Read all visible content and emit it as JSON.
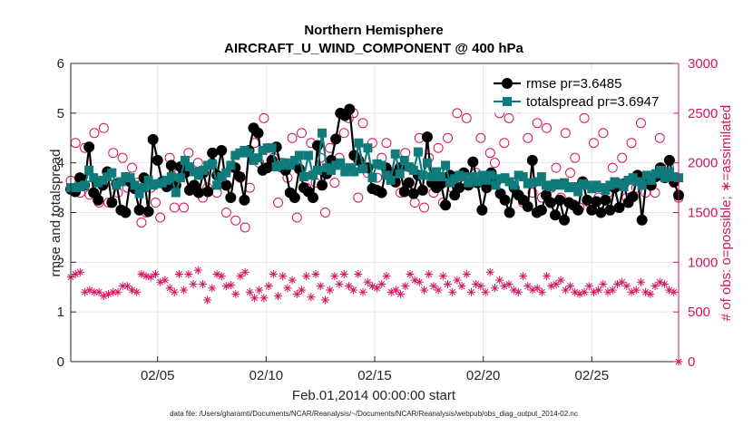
{
  "chart_data": {
    "type": "line",
    "title": "Northern Hemisphere",
    "subtitle": "AIRCRAFT_U_WIND_COMPONENT @ 400 hPa",
    "xlabel": "Feb.01,2014 00:00:00 start",
    "ylabel": "rmse and totalspread",
    "y2label": "# of obs: o=possible; ∗=assimilated",
    "footnote": "data file: /Users/gharamti/Documents/NCAR/Reanalysis/~/Documents/NCAR/Reanalysis/webpub/obs_diag_output_2014-02.nc",
    "xlim": [
      1,
      29
    ],
    "ylim": [
      0,
      6
    ],
    "y2lim": [
      0,
      3000
    ],
    "x_ticks": [
      5,
      10,
      15,
      20,
      25
    ],
    "x_tick_labels": [
      "02/05",
      "02/10",
      "02/15",
      "02/20",
      "02/25"
    ],
    "y_ticks": [
      0,
      1,
      2,
      3,
      4,
      5,
      6
    ],
    "y2_ticks": [
      0,
      500,
      1000,
      1500,
      2000,
      2500,
      3000
    ],
    "grid": true,
    "legend_position": "top-right",
    "colors": {
      "rmse": "#000000",
      "totalspread": "#0f7b7b",
      "obs": "#d6135e",
      "grid": "#e6e6e6",
      "axis": "#262626"
    },
    "series": [
      {
        "name": "rmse pr=3.6485",
        "marker": "circle",
        "values": [
          3.47,
          3.42,
          3.7,
          3.55,
          4.32,
          3.4,
          3.25,
          3.55,
          3.82,
          3.2,
          3.58,
          3.05,
          3.0,
          3.62,
          3.48,
          3.05,
          3.7,
          3.02,
          4.47,
          4.05,
          3.62,
          3.52,
          3.95,
          3.55,
          3.92,
          3.8,
          3.45,
          3.55,
          3.4,
          3.8,
          3.42,
          4.2,
          3.75,
          4.25,
          3.55,
          3.3,
          3.9,
          3.72,
          3.25,
          4.25,
          4.7,
          4.6,
          3.85,
          3.9,
          4.05,
          4.32,
          3.92,
          3.85,
          3.4,
          3.3,
          3.88,
          3.5,
          3.42,
          3.3,
          4.35,
          3.55,
          3.78,
          4.05,
          4.48,
          5.0,
          4.95,
          5.08,
          4.15,
          4.05,
          3.9,
          3.9,
          3.48,
          3.45,
          3.4,
          3.9,
          3.8,
          3.62,
          3.9,
          3.42,
          3.6,
          3.38,
          3.75,
          3.45,
          4.52,
          3.6,
          3.5,
          3.58,
          3.15,
          3.75,
          3.35,
          3.5,
          3.8,
          3.55,
          4.02,
          3.6,
          3.05,
          3.5,
          3.8,
          3.62,
          3.38,
          3.25,
          3.0,
          3.5,
          3.35,
          3.25,
          3.12,
          4.05,
          3.0,
          3.05,
          3.35,
          3.2,
          2.95,
          3.25,
          2.85,
          3.2,
          3.15,
          3.05,
          3.62,
          3.25,
          3.05,
          3.22,
          3.0,
          3.25,
          3.05,
          3.5,
          3.1,
          3.58,
          3.2,
          3.32,
          3.75,
          2.85,
          3.72,
          3.55,
          3.72,
          3.9,
          3.7,
          4.05,
          3.62,
          3.35
        ]
      },
      {
        "name": "totalspread pr=3.6947",
        "marker": "square",
        "values": [
          3.5,
          3.5,
          3.52,
          3.55,
          3.85,
          3.7,
          3.6,
          3.65,
          3.72,
          3.8,
          3.55,
          3.62,
          3.72,
          3.7,
          3.55,
          3.38,
          3.5,
          3.65,
          3.55,
          3.58,
          3.6,
          3.65,
          3.72,
          3.4,
          3.7,
          4.05,
          3.92,
          3.82,
          3.75,
          3.85,
          3.95,
          3.98,
          3.55,
          3.72,
          3.8,
          3.95,
          4.15,
          4.2,
          4.25,
          4.2,
          4.05,
          4.1,
          4.25,
          4.3,
          4.3,
          3.92,
          3.95,
          4.0,
          3.95,
          4.05,
          4.15,
          3.72,
          4.15,
          3.75,
          3.85,
          4.6,
          3.9,
          3.85,
          3.95,
          4.0,
          3.82,
          3.9,
          3.82,
          4.4,
          3.88,
          4.3,
          3.7,
          3.98,
          3.95,
          3.75,
          3.65,
          4.18,
          3.78,
          4.05,
          3.92,
          3.85,
          4.22,
          3.75,
          4.0,
          3.72,
          3.82,
          3.72,
          3.95,
          3.6,
          3.68,
          3.75,
          3.72,
          3.6,
          3.72,
          3.62,
          3.75,
          3.65,
          3.75,
          3.55,
          3.68,
          3.7,
          3.62,
          3.55,
          3.75,
          3.72,
          3.58,
          3.6,
          3.62,
          3.72,
          3.55,
          3.52,
          3.58,
          3.55,
          3.6,
          3.5,
          3.52,
          3.42,
          3.58,
          3.55,
          3.48,
          3.55,
          3.5,
          3.45,
          3.55,
          3.62,
          3.58,
          3.52,
          3.65,
          3.7,
          3.62,
          3.55,
          3.75,
          3.65,
          3.78,
          3.85,
          3.7,
          3.82,
          3.72,
          3.7
        ]
      }
    ],
    "obs_count_series": [
      {
        "name": "possible",
        "marker": "o",
        "values": [
          1820,
          2200,
          1700,
          2150,
          1680,
          2300,
          1600,
          2350,
          1600,
          2100,
          1700,
          2050,
          1750,
          1950,
          1800,
          1400,
          1500,
          1750,
          1600,
          1450,
          1800,
          2050,
          1550,
          1900,
          1550,
          2100,
          1750,
          2000,
          1650,
          1750,
          2000,
          1700,
          1850,
          1500,
          1950,
          1420,
          1850,
          1350,
          1750,
          2200,
          2000,
          2450,
          2150,
          2050,
          1600,
          2000,
          1850,
          2250,
          1450,
          2300,
          1750,
          2200,
          1800,
          2050,
          1500,
          2150,
          1800,
          2050,
          2300,
          2450,
          2500,
          1650,
          2400,
          1900,
          2200,
          1850,
          2050,
          2200,
          1850,
          1800,
          1700,
          2100,
          1950,
          1600,
          2250,
          1550,
          2050,
          1700,
          2150,
          1600,
          2250,
          1750,
          2500,
          1800,
          2450,
          1800,
          1900,
          2250,
          1800,
          2100,
          2000,
          2500,
          2200,
          2450,
          1800,
          2550,
          1600,
          2250,
          1700,
          2400,
          1650,
          2350,
          1750,
          1950,
          1650,
          2300,
          1900,
          2050,
          1550,
          2450,
          1600,
          2200,
          1650,
          2300,
          1700,
          1950,
          1800,
          2050,
          1650,
          2200,
          1750,
          2400,
          1700,
          1850,
          1700,
          2250,
          1850,
          1950,
          1800,
          1650
        ]
      },
      {
        "name": "assimilated",
        "marker": "*",
        "values": [
          850,
          880,
          900,
          700,
          720,
          700,
          700,
          660,
          680,
          700,
          700,
          760,
          760,
          720,
          700,
          880,
          860,
          850,
          880,
          800,
          820,
          740,
          700,
          880,
          720,
          880,
          780,
          920,
          780,
          620,
          740,
          880,
          860,
          760,
          770,
          680,
          860,
          900,
          700,
          640,
          720,
          640,
          760,
          880,
          660,
          860,
          740,
          820,
          680,
          720,
          860,
          650,
          880,
          760,
          620,
          720,
          860,
          780,
          880,
          760,
          720,
          880,
          700,
          800,
          760,
          740,
          780,
          860,
          700,
          720,
          680,
          760,
          880,
          820,
          800,
          720,
          880,
          760,
          720,
          860,
          780,
          700,
          820,
          760,
          880,
          700,
          780,
          760,
          700,
          900,
          740,
          820,
          760,
          780,
          720,
          700,
          860,
          760,
          720,
          740,
          700,
          860,
          760,
          780,
          820,
          720,
          760,
          700,
          680,
          700,
          760,
          700,
          720,
          780,
          700,
          720,
          780,
          800,
          760,
          700,
          720,
          800,
          700,
          680,
          760,
          800,
          780,
          720,
          700,
          0
        ]
      }
    ]
  }
}
